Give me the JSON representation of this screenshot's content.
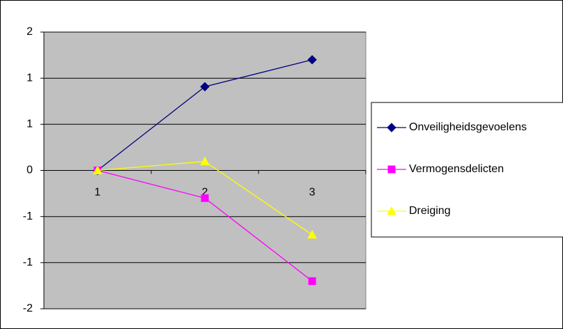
{
  "chart_data": {
    "type": "line",
    "categories": [
      1,
      2,
      3
    ],
    "series": [
      {
        "name": "Onveiligheidsgevoelens",
        "color": "#000080",
        "marker": "diamond",
        "values": [
          0,
          1.21,
          1.6
        ]
      },
      {
        "name": "Vermogensdelicten",
        "color": "#ff00ff",
        "marker": "square",
        "values": [
          0,
          -0.4,
          -1.6
        ]
      },
      {
        "name": "Dreiging",
        "color": "#ffff00",
        "marker": "triangle",
        "values": [
          0,
          0.13,
          -0.93
        ]
      }
    ],
    "ylim": [
      -2,
      2
    ],
    "yticks": [
      {
        "value": -2,
        "label": "-2"
      },
      {
        "value": -1.333,
        "label": "-1"
      },
      {
        "value": -0.667,
        "label": "-1"
      },
      {
        "value": 0,
        "label": "0"
      },
      {
        "value": 0.667,
        "label": "1"
      },
      {
        "value": 1.333,
        "label": "1"
      },
      {
        "value": 2,
        "label": "2"
      }
    ],
    "grid": true,
    "legend": "right"
  }
}
